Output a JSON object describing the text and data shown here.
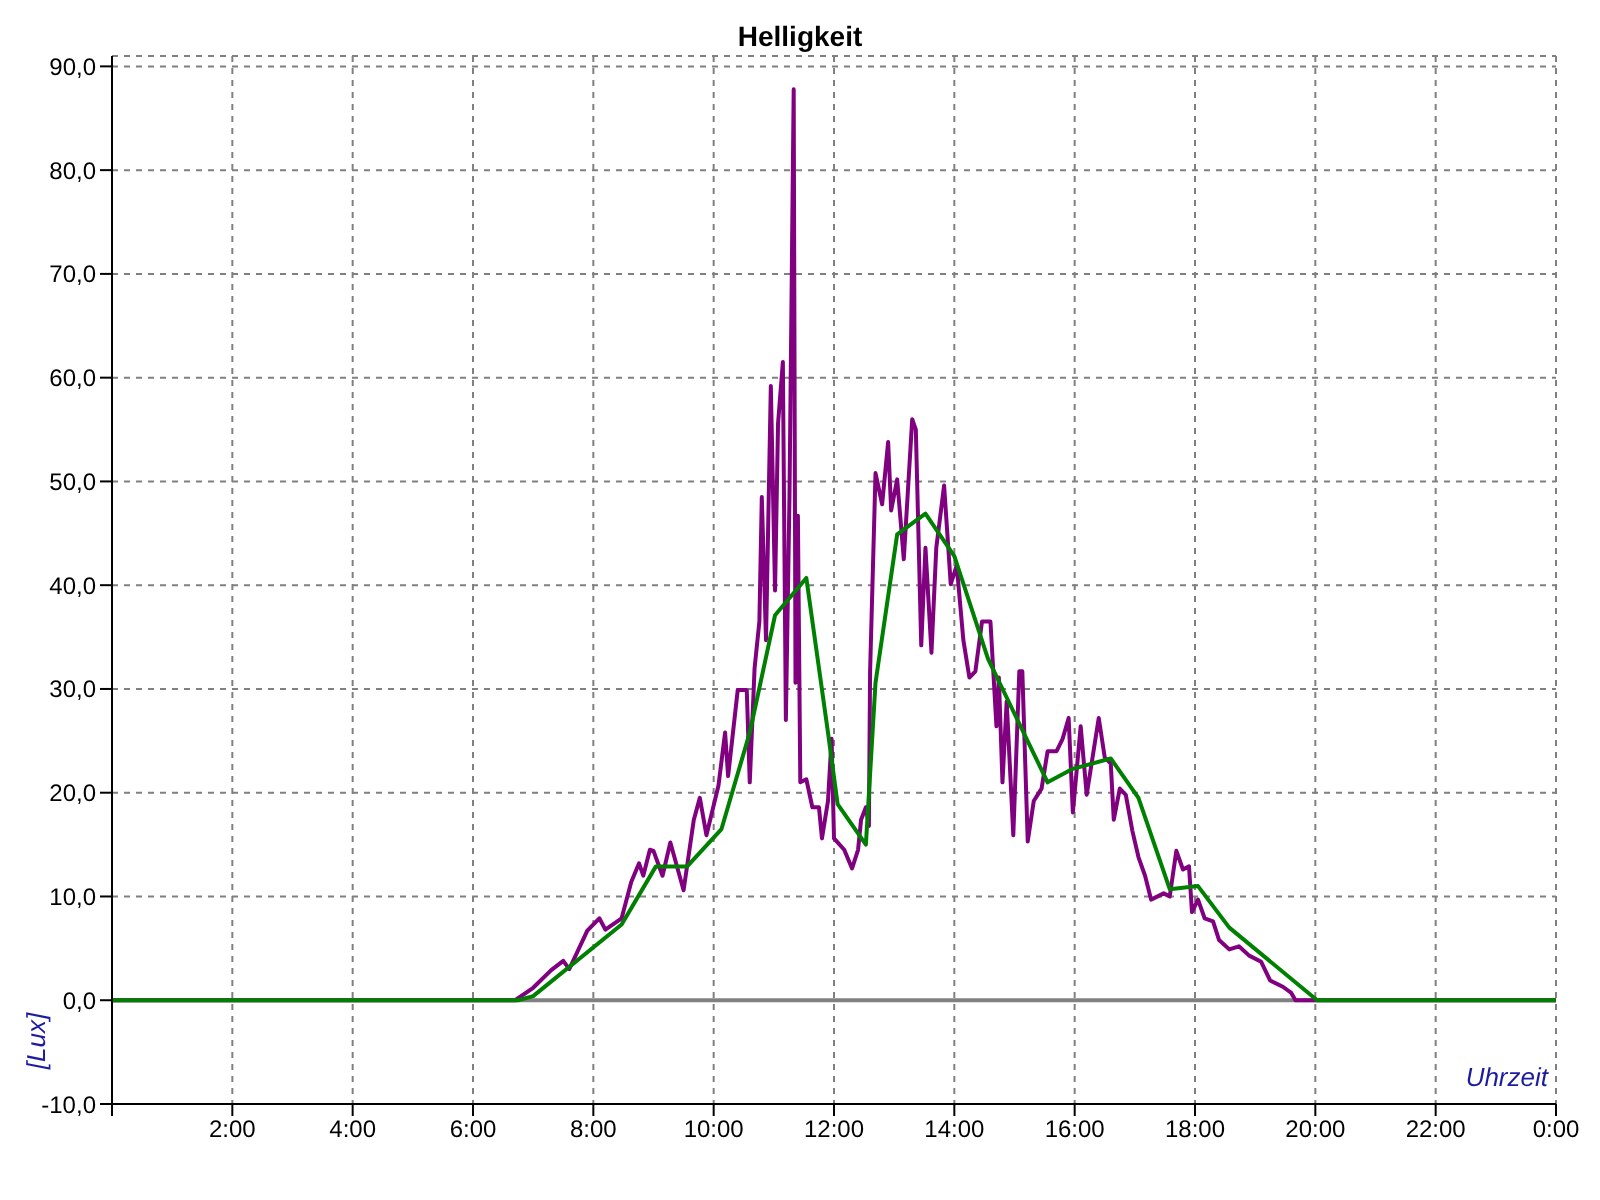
{
  "chart_data": {
    "type": "line",
    "title": "Helligkeit",
    "xlabel": "Uhrzeit",
    "ylabel": "[Lux]",
    "xlim": [
      0,
      24
    ],
    "xticks": [
      {
        "value": 0,
        "label": null
      },
      {
        "value": 2,
        "label": "2:00"
      },
      {
        "value": 4,
        "label": "4:00"
      },
      {
        "value": 6,
        "label": "6:00"
      },
      {
        "value": 8,
        "label": "8:00"
      },
      {
        "value": 10,
        "label": "10:00"
      },
      {
        "value": 12,
        "label": "12:00"
      },
      {
        "value": 14,
        "label": "14:00"
      },
      {
        "value": 16,
        "label": "16:00"
      },
      {
        "value": 18,
        "label": "18:00"
      },
      {
        "value": 20,
        "label": "20:00"
      },
      {
        "value": 22,
        "label": "22:00"
      },
      {
        "value": 24,
        "label": "0:00"
      }
    ],
    "ylim": [
      -10,
      91
    ],
    "yticks": [
      {
        "value": -10,
        "label": "-10,0"
      },
      {
        "value": 0,
        "label": "0,0"
      },
      {
        "value": 10,
        "label": "10,0"
      },
      {
        "value": 20,
        "label": "20,0"
      },
      {
        "value": 30,
        "label": "30,0"
      },
      {
        "value": 40,
        "label": "40,0"
      },
      {
        "value": 50,
        "label": "50,0"
      },
      {
        "value": 60,
        "label": "60,0"
      },
      {
        "value": 70,
        "label": "70,0"
      },
      {
        "value": 80,
        "label": "80,0"
      },
      {
        "value": 90,
        "label": "90,0"
      }
    ],
    "grid": true,
    "marker": "none",
    "line_style": "solid",
    "ref_lines": [
      {
        "axis": "y",
        "value": 0,
        "color": "#808080"
      }
    ],
    "series": [
      {
        "color": "#800080",
        "x": [
          0,
          6.7,
          7.0,
          7.3,
          7.5,
          7.6,
          7.9,
          8.1,
          8.2,
          8.47,
          8.63,
          8.76,
          8.83,
          8.94,
          9.0,
          9.15,
          9.28,
          9.5,
          9.67,
          9.77,
          9.88,
          10.08,
          10.19,
          10.24,
          10.4,
          10.55,
          10.6,
          10.68,
          10.76,
          10.8,
          10.87,
          10.95,
          11.02,
          11.07,
          11.15,
          11.2,
          11.26,
          11.33,
          11.36,
          11.4,
          11.44,
          11.54,
          11.64,
          11.75,
          11.8,
          11.9,
          11.96,
          12.0,
          12.17,
          12.3,
          12.4,
          12.45,
          12.53,
          12.58,
          12.6,
          12.69,
          12.8,
          12.9,
          12.95,
          13.05,
          13.16,
          13.3,
          13.36,
          13.45,
          13.52,
          13.62,
          13.7,
          13.83,
          13.94,
          14.04,
          14.15,
          14.25,
          14.35,
          14.46,
          14.6,
          14.7,
          14.74,
          14.8,
          14.87,
          14.98,
          15.08,
          15.13,
          15.22,
          15.32,
          15.45,
          15.55,
          15.7,
          15.8,
          15.9,
          15.97,
          16.1,
          16.2,
          16.4,
          16.5,
          16.6,
          16.65,
          16.75,
          16.85,
          16.96,
          17.06,
          17.17,
          17.27,
          17.48,
          17.58,
          17.69,
          17.8,
          17.9,
          17.95,
          18.05,
          18.16,
          18.3,
          18.4,
          18.57,
          18.73,
          18.9,
          19.1,
          19.25,
          19.46,
          19.6,
          19.67,
          24
        ],
        "values": [
          0,
          0,
          1.2,
          2.9,
          3.8,
          3.0,
          6.7,
          7.9,
          6.8,
          7.9,
          11.4,
          13.2,
          12.0,
          14.5,
          14.4,
          12.0,
          15.2,
          10.6,
          17.4,
          19.5,
          15.9,
          20.7,
          25.8,
          21.6,
          29.9,
          29.9,
          21.0,
          32.0,
          36.5,
          48.5,
          34.7,
          59.2,
          39.5,
          55.6,
          61.5,
          27.0,
          48.5,
          87.8,
          30.6,
          46.7,
          21.0,
          21.3,
          18.6,
          18.6,
          15.6,
          19.2,
          25.2,
          15.6,
          14.5,
          12.7,
          14.5,
          17.4,
          18.6,
          16.8,
          31.7,
          50.8,
          47.8,
          53.8,
          47.2,
          50.2,
          42.5,
          56.0,
          55.0,
          34.2,
          43.6,
          33.5,
          43.6,
          49.6,
          40.1,
          41.9,
          34.7,
          31.1,
          31.7,
          36.5,
          36.5,
          26.4,
          31.1,
          21.0,
          28.8,
          15.9,
          31.7,
          31.7,
          15.3,
          19.2,
          20.4,
          24.0,
          24.0,
          25.2,
          27.2,
          18.1,
          26.4,
          19.8,
          27.2,
          23.4,
          22.8,
          17.4,
          20.4,
          19.8,
          16.3,
          13.8,
          12.0,
          9.7,
          10.3,
          10.0,
          14.4,
          12.6,
          12.9,
          8.5,
          9.7,
          7.9,
          7.6,
          5.8,
          4.9,
          5.2,
          4.3,
          3.7,
          1.9,
          1.3,
          0.7,
          0,
          0
        ]
      },
      {
        "color": "#008000",
        "x": [
          0,
          6.75,
          7.0,
          8.47,
          9.04,
          9.56,
          10.13,
          10.6,
          11.02,
          11.54,
          11.9,
          12.06,
          12.53,
          12.69,
          13.05,
          13.52,
          14.0,
          14.56,
          15.55,
          15.97,
          16.6,
          17.06,
          17.58,
          18.05,
          18.57,
          20.03,
          24
        ],
        "values": [
          0,
          0,
          0.4,
          7.3,
          12.9,
          12.9,
          16.5,
          25.8,
          37.1,
          40.7,
          25.8,
          18.9,
          15.0,
          30.6,
          44.9,
          46.9,
          42.8,
          32.9,
          21.0,
          22.3,
          23.3,
          19.5,
          10.7,
          11.0,
          7.0,
          0,
          0
        ]
      }
    ]
  }
}
